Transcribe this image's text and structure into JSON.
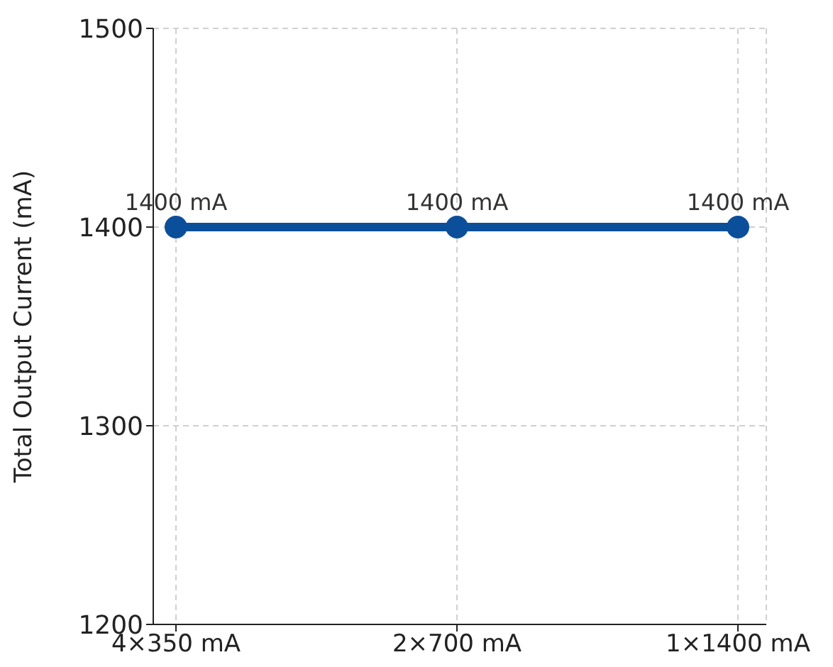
{
  "chart_data": {
    "type": "line",
    "ylabel": "Total Output Current (mA)",
    "categories": [
      "4×350 mA",
      "2×700 mA",
      "1×1400 mA"
    ],
    "series": [
      {
        "color": "#0b4f9a",
        "values": [
          1400,
          1400,
          1400
        ],
        "value_labels": [
          "1400 mA",
          "1400 mA",
          "1400 mA"
        ]
      }
    ],
    "ylim": [
      1200,
      1500
    ],
    "yticks": [
      1200,
      1300,
      1400,
      1500
    ],
    "grid": true,
    "marker": "circle",
    "line_style": "solid"
  }
}
